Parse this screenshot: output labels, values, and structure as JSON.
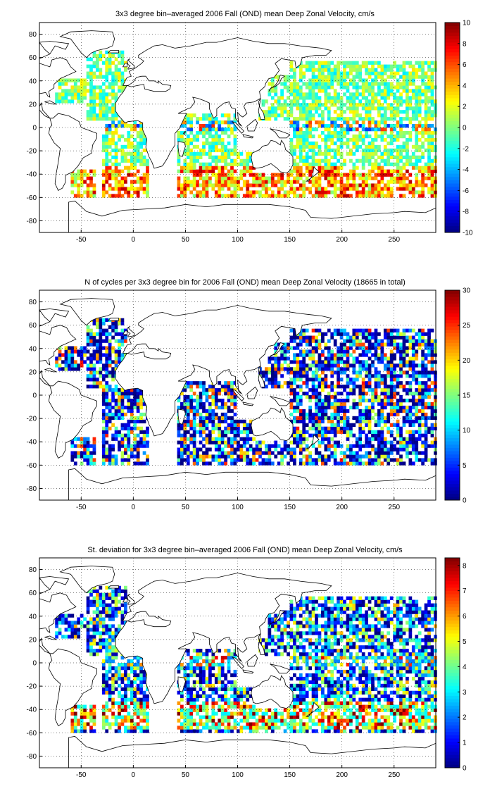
{
  "chart_data": [
    {
      "type": "heatmap",
      "title": "3x3 degree bin–averaged 2006 Fall (OND) mean Deep Zonal Velocity, cm/s",
      "xlim": [
        -90,
        290
      ],
      "ylim": [
        -90,
        90
      ],
      "x_ticks": [
        -50,
        0,
        50,
        100,
        150,
        200,
        250
      ],
      "y_ticks": [
        80,
        60,
        40,
        20,
        0,
        -20,
        -40,
        -60,
        -80
      ],
      "grid": "dotted",
      "colorbar": {
        "colormap": "jet",
        "range": [
          -10,
          10
        ],
        "ticks": [
          10,
          8,
          6,
          4,
          2,
          0,
          -2,
          -4,
          -6,
          -8,
          -10
        ]
      },
      "field": "signed",
      "bin_size_deg": 3,
      "tick_labels": {
        "x": [
          "-50",
          "0",
          "50",
          "100",
          "150",
          "200",
          "250"
        ],
        "y": [
          "80",
          "60",
          "40",
          "20",
          "0",
          "-20",
          "-40",
          "-60",
          "-80"
        ],
        "colorbar": [
          "10",
          "8",
          "6",
          "4",
          "2",
          "0",
          "-2",
          "-4",
          "-6",
          "-8",
          "-10"
        ]
      }
    },
    {
      "type": "heatmap",
      "title": "N of cycles per 3x3 degree bin for 2006 Fall (OND) mean Deep Zonal Velocity (18665 in total)",
      "xlim": [
        -90,
        290
      ],
      "ylim": [
        -90,
        90
      ],
      "x_ticks": [
        -50,
        0,
        50,
        100,
        150,
        200,
        250
      ],
      "y_ticks": [
        80,
        60,
        40,
        20,
        0,
        -20,
        -40,
        -60,
        -80
      ],
      "grid": "dotted",
      "colorbar": {
        "colormap": "jet",
        "range": [
          0,
          30
        ],
        "ticks": [
          30,
          25,
          20,
          15,
          10,
          5,
          0
        ]
      },
      "field": "count",
      "total_count": 18665,
      "bin_size_deg": 3,
      "tick_labels": {
        "x": [
          "-50",
          "0",
          "50",
          "100",
          "150",
          "200",
          "250"
        ],
        "y": [
          "80",
          "60",
          "40",
          "20",
          "0",
          "-20",
          "-40",
          "-60",
          "-80"
        ],
        "colorbar": [
          "30",
          "25",
          "20",
          "15",
          "10",
          "5",
          "0"
        ]
      }
    },
    {
      "type": "heatmap",
      "title": "St. deviation for 3x3 degree bin–averaged 2006 Fall (OND) mean Deep Zonal Velocity, cm/s",
      "xlim": [
        -90,
        290
      ],
      "ylim": [
        -90,
        90
      ],
      "x_ticks": [
        -50,
        0,
        50,
        100,
        150,
        200,
        250
      ],
      "y_ticks": [
        80,
        60,
        40,
        20,
        0,
        -20,
        -40,
        -60,
        -80
      ],
      "grid": "dotted",
      "colorbar": {
        "colormap": "jet",
        "range": [
          0,
          8.3
        ],
        "ticks": [
          8,
          7,
          6,
          5,
          4,
          3,
          2,
          1,
          0
        ]
      },
      "field": "stdev",
      "bin_size_deg": 3,
      "tick_labels": {
        "x": [
          "-50",
          "0",
          "50",
          "100",
          "150",
          "200",
          "250"
        ],
        "y": [
          "80",
          "60",
          "40",
          "20",
          "0",
          "-20",
          "-40",
          "-60",
          "-80"
        ],
        "colorbar": [
          "8",
          "7",
          "6",
          "5",
          "4",
          "3",
          "2",
          "1",
          "0"
        ]
      }
    }
  ]
}
